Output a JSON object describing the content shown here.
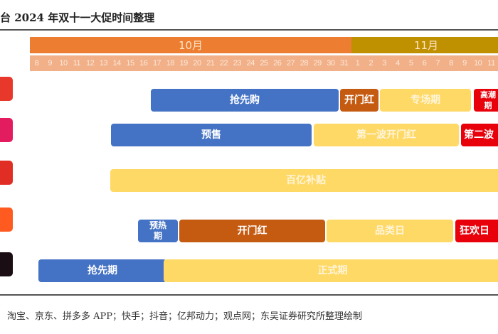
{
  "title": "台 2024 年双十一大促时间整理",
  "months": [
    "10月",
    "11月"
  ],
  "days": [
    "8",
    "9",
    "10",
    "11",
    "12",
    "13",
    "14",
    "15",
    "16",
    "17",
    "18",
    "19",
    "20",
    "21",
    "22",
    "23",
    "24",
    "25",
    "26",
    "27",
    "28",
    "29",
    "30",
    "31",
    "1",
    "2",
    "3",
    "4",
    "5",
    "6",
    "7",
    "8",
    "9",
    "10",
    "11"
  ],
  "colors": {
    "oct": "#ed7d31",
    "nov": "#bf9000",
    "blue": "#4472c4",
    "brown": "#c55a11",
    "yellow": "#ffd966",
    "red": "#e8000b"
  },
  "platform_icons": [
    "taobao-icon",
    "jd-icon",
    "pinduoduo-icon",
    "kuaishou-icon",
    "douyin-icon"
  ],
  "rows": [
    {
      "bars": [
        {
          "label": "抢先购",
          "start": "10-17",
          "end": "10-31"
        },
        {
          "label": "开门红",
          "start": "10-31",
          "end": "11-02"
        },
        {
          "label": "专场期",
          "start": "11-03",
          "end": "11-09"
        },
        {
          "label": "高潮期",
          "start": "11-10",
          "end": "11-11"
        }
      ]
    },
    {
      "bars": [
        {
          "label": "预售",
          "start": "10-14",
          "end": "10-28"
        },
        {
          "label": "第一波开门红",
          "start": "10-29",
          "end": "11-08"
        },
        {
          "label": "第二波",
          "start": "11-09",
          "end": "11-11"
        }
      ]
    },
    {
      "bars": [
        {
          "label": "百亿补贴",
          "start": "10-14",
          "end": "11-11"
        }
      ]
    },
    {
      "bars": [
        {
          "label": "预热期",
          "start": "10-16",
          "end": "10-18"
        },
        {
          "label": "开门红",
          "start": "10-19",
          "end": "10-29"
        },
        {
          "label": "品类日",
          "start": "10-30",
          "end": "11-08"
        },
        {
          "label": "狂欢日",
          "start": "11-09",
          "end": "11-11"
        }
      ]
    },
    {
      "bars": [
        {
          "label": "抢先期",
          "start": "10-08",
          "end": "10-17"
        },
        {
          "label": "正式期",
          "start": "10-18",
          "end": "11-11"
        }
      ]
    }
  ],
  "source": "淘宝、京东、拼多多 APP；快手；抖音；亿邦动力；观点网；东吴证券研究所整理绘制"
}
